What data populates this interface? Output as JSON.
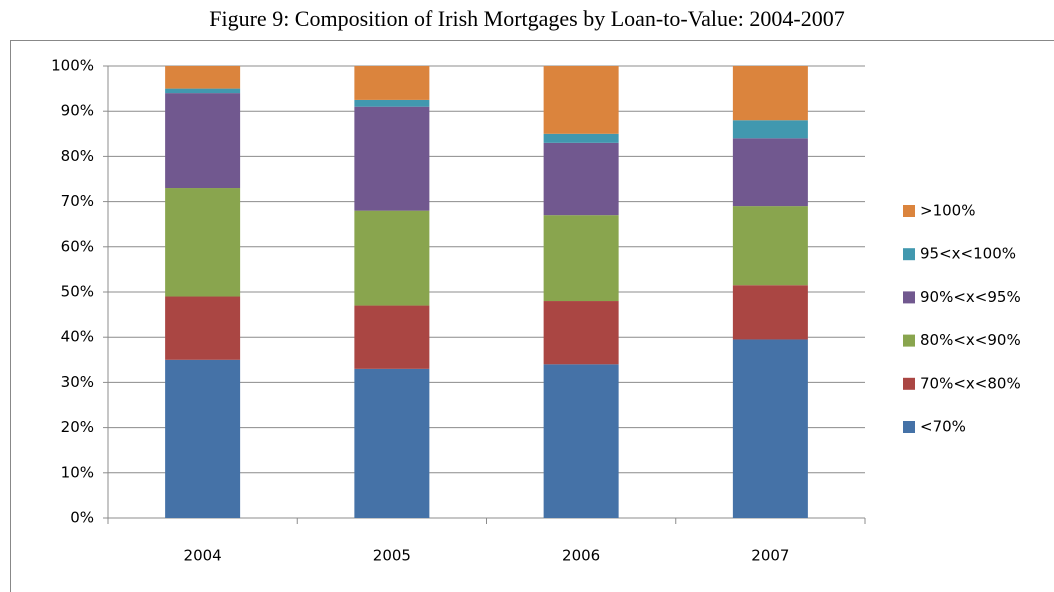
{
  "chart_data": {
    "type": "stacked_bar",
    "title": "Figure 9: Composition of Irish Mortgages by Loan-to-Value: 2004-2007",
    "categories": [
      "2004",
      "2005",
      "2006",
      "2007"
    ],
    "series": [
      {
        "name": "<70%",
        "color": "#4572a7",
        "values": [
          35,
          33,
          34,
          39.5
        ]
      },
      {
        "name": "70%<x<80%",
        "color": "#aa4643",
        "values": [
          14,
          14,
          14,
          12
        ]
      },
      {
        "name": "80%<x<90%",
        "color": "#89a54e",
        "values": [
          24,
          21,
          19,
          17.5
        ]
      },
      {
        "name": "90%<x<95%",
        "color": "#71588f",
        "values": [
          21,
          23,
          16,
          15
        ]
      },
      {
        "name": "95<x<100%",
        "color": "#4198af",
        "values": [
          1,
          1.5,
          2,
          4
        ]
      },
      {
        "name": ">100%",
        "color": "#db843d",
        "values": [
          5,
          7.5,
          15,
          12
        ]
      }
    ],
    "ylim": [
      0,
      100
    ],
    "yticks": [
      {
        "value": 0,
        "label": "0%"
      },
      {
        "value": 10,
        "label": "10%"
      },
      {
        "value": 20,
        "label": "20%"
      },
      {
        "value": 30,
        "label": "30%"
      },
      {
        "value": 40,
        "label": "40%"
      },
      {
        "value": 50,
        "label": "50%"
      },
      {
        "value": 60,
        "label": "60%"
      },
      {
        "value": 70,
        "label": "70%"
      },
      {
        "value": 80,
        "label": "80%"
      },
      {
        "value": 90,
        "label": "90%"
      },
      {
        "value": 100,
        "label": "100%"
      }
    ],
    "grid": true,
    "legend": "right"
  }
}
